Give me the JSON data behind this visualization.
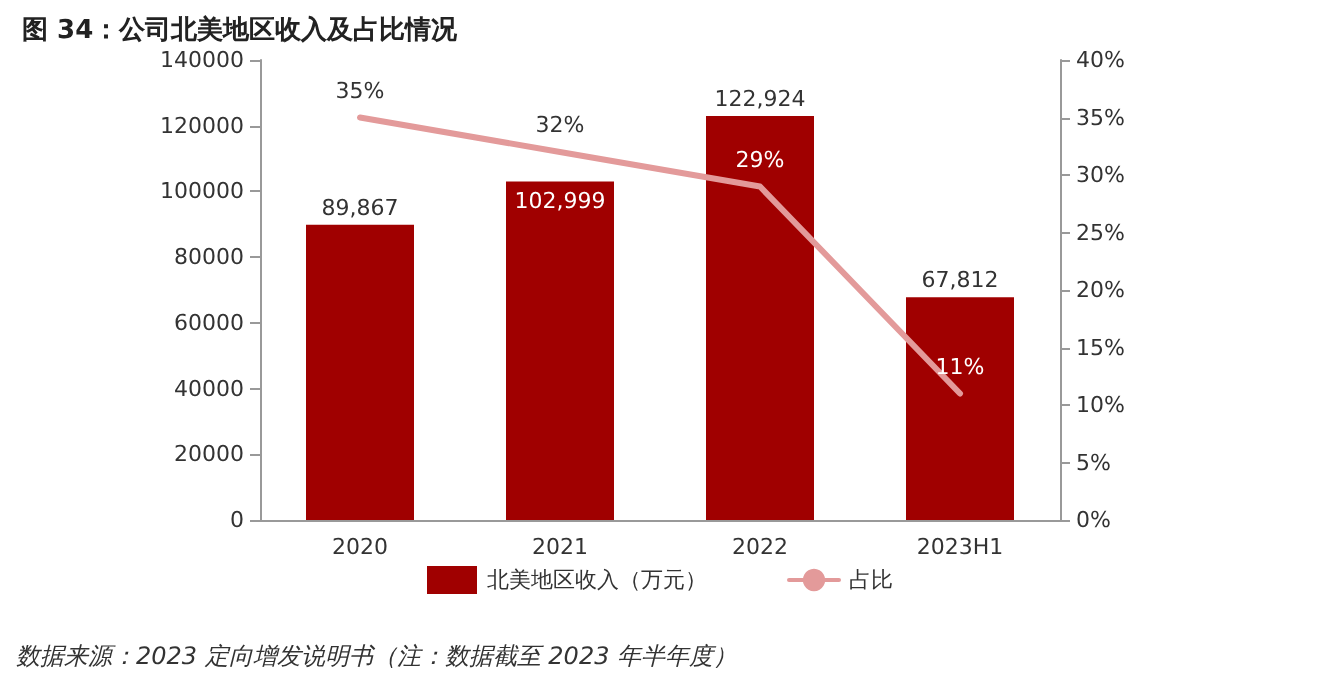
{
  "chart_data": {
    "type": "bar",
    "title": "图 34：公司北美地区收入及占比情况",
    "categories": [
      "2020",
      "2021",
      "2022",
      "2023H1"
    ],
    "series": [
      {
        "name": "北美地区收入（万元）",
        "type": "bar",
        "color": "#a00000",
        "values": [
          89867,
          102999,
          122924,
          67812
        ],
        "value_labels": [
          "89,867",
          "102,999",
          "122,924",
          "67,812"
        ]
      },
      {
        "name": "占比",
        "type": "line",
        "axis": "y2",
        "color": "#e39a9a",
        "values": [
          35,
          32,
          29,
          11
        ],
        "value_labels": [
          "35%",
          "32%",
          "29%",
          "11%"
        ]
      }
    ],
    "ylim": [
      0,
      140000
    ],
    "yticks": [
      0,
      20000,
      40000,
      60000,
      80000,
      100000,
      120000,
      140000
    ],
    "y2lim": [
      0,
      40
    ],
    "y2ticks": [
      {
        "value": 0,
        "label": "0%"
      },
      {
        "value": 5,
        "label": "5%"
      },
      {
        "value": 10,
        "label": "10%"
      },
      {
        "value": 15,
        "label": "15%"
      },
      {
        "value": 20,
        "label": "20%"
      },
      {
        "value": 25,
        "label": "25%"
      },
      {
        "value": 30,
        "label": "30%"
      },
      {
        "value": 35,
        "label": "35%"
      },
      {
        "value": 40,
        "label": "40%"
      }
    ],
    "grid": false,
    "legend": "bottom",
    "marker": "none",
    "line_style": "solid",
    "annotations": [
      "数据来源：2023 定向增发说明书（注：数据截至 2023 年半年度）"
    ]
  }
}
